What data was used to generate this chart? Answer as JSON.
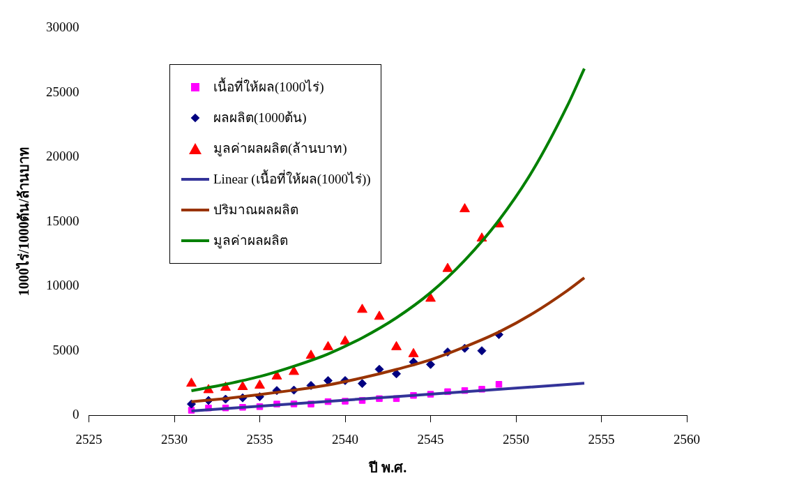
{
  "chart_data": {
    "type": "scatter",
    "xlabel": "ปี พ.ศ.",
    "ylabel": "1000ไร่/1000ต้น/ล้านบาท",
    "xlim": [
      2525,
      2560
    ],
    "xticks": [
      2525,
      2530,
      2535,
      2540,
      2545,
      2550,
      2555,
      2560
    ],
    "ylim": [
      0,
      30000
    ],
    "yticks": [
      0,
      5000,
      10000,
      15000,
      20000,
      25000,
      30000
    ],
    "grid": false,
    "legend": "top left",
    "x": [
      2531,
      2532,
      2533,
      2534,
      2535,
      2536,
      2537,
      2538,
      2539,
      2540,
      2541,
      2542,
      2543,
      2544,
      2545,
      2546,
      2547,
      2548,
      2549
    ],
    "series": [
      {
        "name": "เนื้อที่ให้ผล(1000ไร่)",
        "marker": "square",
        "color": "#ff00ff",
        "values": [
          390,
          570,
          570,
          620,
          670,
          870,
          880,
          870,
          1060,
          1090,
          1150,
          1290,
          1290,
          1540,
          1630,
          1830,
          1920,
          2020,
          2400
        ]
      },
      {
        "name": "ผลผลิต(1000ต้น)",
        "marker": "diamond",
        "color": "#000080",
        "values": [
          870,
          1150,
          1250,
          1350,
          1440,
          1920,
          1950,
          2310,
          2690,
          2690,
          2460,
          3560,
          3210,
          4130,
          3940,
          4900,
          5190,
          5000,
          6250
        ]
      },
      {
        "name": "มูลค่าผลผลิต(ล้านบาท)",
        "marker": "triangle",
        "color": "#ff0000",
        "values": [
          2460,
          1960,
          2150,
          2200,
          2310,
          3020,
          3370,
          4620,
          5290,
          5730,
          8180,
          7640,
          5290,
          4750,
          9040,
          11350,
          15970,
          13700,
          14800
        ]
      },
      {
        "name": "Linear (เนื้อที่ให้ผล(1000ไร่))",
        "type": "line",
        "marker": "none",
        "color": "#333399",
        "x": [
          2531,
          2554
        ],
        "values": [
          330,
          2480
        ]
      },
      {
        "name": "ปริมาณผลผลิต",
        "type": "line",
        "marker": "none",
        "color": "#993300",
        "x": [
          2531,
          2533,
          2535,
          2537,
          2539,
          2541,
          2543,
          2545,
          2547,
          2549,
          2551,
          2553,
          2554
        ],
        "values": [
          1050,
          1300,
          1600,
          1950,
          2350,
          2900,
          3550,
          4300,
          5300,
          6450,
          7900,
          9650,
          10650
        ]
      },
      {
        "name": "มูลค่าผลผลิต",
        "type": "line",
        "marker": "none",
        "color": "#008000",
        "x": [
          2531,
          2533,
          2535,
          2537,
          2539,
          2541,
          2543,
          2545,
          2547,
          2549,
          2551,
          2553,
          2554
        ],
        "values": [
          1900,
          2400,
          3000,
          3800,
          4750,
          6000,
          7550,
          9500,
          12000,
          15100,
          19000,
          23950,
          26850
        ]
      }
    ]
  }
}
